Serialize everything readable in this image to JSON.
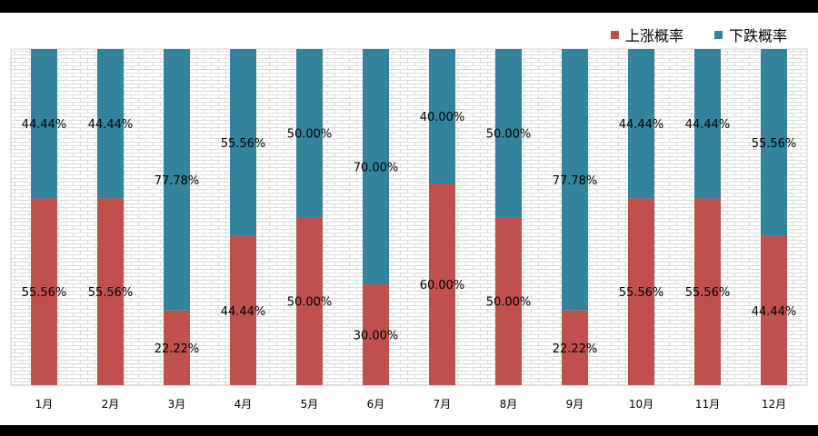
{
  "chart_data": {
    "type": "bar",
    "stacked": true,
    "percent_stacked": true,
    "categories": [
      "1月",
      "2月",
      "3月",
      "4月",
      "5月",
      "6月",
      "7月",
      "8月",
      "9月",
      "10月",
      "11月",
      "12月"
    ],
    "series": [
      {
        "name": "上涨概率",
        "color": "#c0504d",
        "values": [
          55.56,
          55.56,
          22.22,
          44.44,
          50.0,
          30.0,
          60.0,
          50.0,
          22.22,
          55.56,
          55.56,
          44.44
        ],
        "labels": [
          "55.56%",
          "55.56%",
          "22.22%",
          "44.44%",
          "50.00%",
          "30.00%",
          "60.00%",
          "50.00%",
          "22.22%",
          "55.56%",
          "55.56%",
          "44.44%"
        ]
      },
      {
        "name": "下跌概率",
        "color": "#31849b",
        "values": [
          44.44,
          44.44,
          77.78,
          55.56,
          50.0,
          70.0,
          40.0,
          50.0,
          77.78,
          44.44,
          44.44,
          55.56
        ],
        "labels": [
          "44.44%",
          "44.44%",
          "77.78%",
          "55.56%",
          "50.00%",
          "70.00%",
          "40.00%",
          "50.00%",
          "77.78%",
          "44.44%",
          "44.44%",
          "55.56%"
        ]
      }
    ],
    "ylim": [
      0,
      100
    ],
    "grid": false,
    "legend": "top-right",
    "plot_background": "brick-pattern"
  }
}
